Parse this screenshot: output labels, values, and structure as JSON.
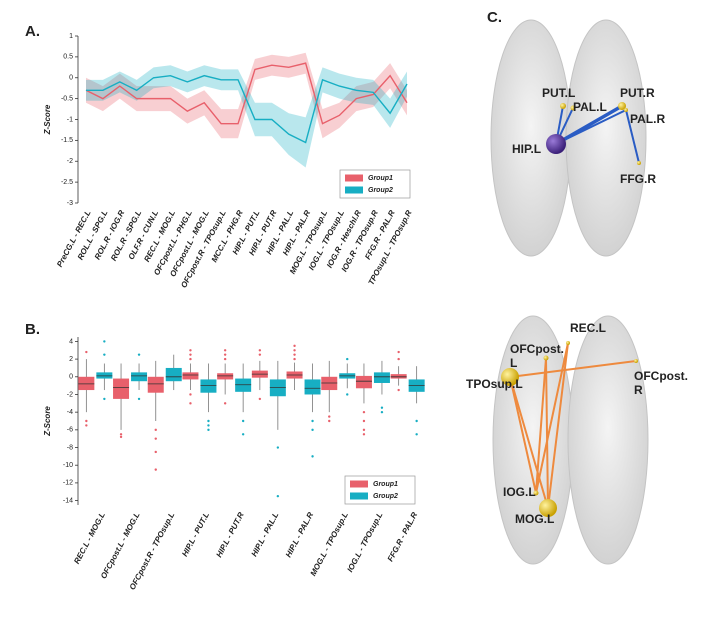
{
  "chart_data": [
    {
      "type": "band-line",
      "panel": "A.",
      "y_label": "Z-Score",
      "categories": [
        "PreCG.L - REC.L",
        "ROL.L - SPG.L",
        "ROL.R - IOG.R",
        "ROL.R - SPG.L",
        "OLF.R - CUN.L",
        "REC.L - MOG.L",
        "OFCpost.L - PHG.L",
        "OFCpost.L - MOG.L",
        "OFCpost.R - TPOsup.L",
        "MCC.L - PHG.R",
        "HIP.L - PUT.L",
        "HIP.L - PUT.R",
        "HIP.L - PAL.L",
        "HIP.L - PAL.R",
        "MOG.L - TPOsup.L",
        "IOG.L - TPOsup.L",
        "IOG.R - Heschl.R",
        "IOG.R - TPOsup.R",
        "FFG.R - PAL.R",
        "TPOsup.L - TPOsup.R"
      ],
      "series": [
        {
          "name": "Group1",
          "color": "#e8606b",
          "values": [
            -0.3,
            -0.5,
            -0.2,
            -0.5,
            -0.5,
            -0.5,
            -0.8,
            -0.6,
            -1.1,
            -1.1,
            0.2,
            0.3,
            0.25,
            0.35,
            -1.1,
            -0.9,
            -0.5,
            -0.4,
            0.05,
            -0.6
          ],
          "error": [
            0.3,
            0.3,
            0.3,
            0.3,
            0.3,
            0.3,
            0.3,
            0.3,
            0.35,
            0.35,
            0.25,
            0.25,
            0.25,
            0.25,
            0.35,
            0.3,
            0.3,
            0.3,
            0.3,
            0.3
          ]
        },
        {
          "name": "Group2",
          "color": "#17aec3",
          "values": [
            -0.3,
            -0.3,
            -0.1,
            -0.3,
            0.0,
            0.05,
            -0.1,
            0.05,
            -0.05,
            -0.05,
            -1.0,
            -1.0,
            -1.35,
            -1.55,
            -0.05,
            -0.2,
            -0.3,
            -0.35,
            -0.85,
            -0.15
          ],
          "error": [
            0.25,
            0.25,
            0.25,
            0.25,
            0.25,
            0.25,
            0.25,
            0.25,
            0.25,
            0.25,
            0.4,
            0.4,
            0.5,
            0.6,
            0.3,
            0.3,
            0.3,
            0.3,
            0.35,
            0.3
          ]
        }
      ],
      "ylim": [
        -3,
        1
      ],
      "yticks": [
        -3,
        -2.5,
        -2,
        -1.5,
        -1,
        -0.5,
        0,
        0.5,
        1
      ],
      "legend": "lower-right"
    },
    {
      "type": "box",
      "panel": "B.",
      "y_label": "Z-Score",
      "categories": [
        "REC.L - MOG.L",
        "OFCpost.L - MOG.L",
        "OFCpost.R - TPOsup.L",
        "HIP.L - PUT.L",
        "HIP.L - PUT.R",
        "HIP.L - PAL.L",
        "HIP.L - PAL.R",
        "MOG.L - TPOsup.L",
        "IOG.L - TPOsup.L",
        "FFG.R - PAL.R"
      ],
      "series": [
        {
          "name": "Group1",
          "color": "#e8606b",
          "min": [
            -4,
            -6,
            -5,
            -1.5,
            -2,
            -1.5,
            -1.5,
            -4,
            -3,
            -1
          ],
          "q1": [
            -1.5,
            -2.5,
            -1.8,
            -0.3,
            -0.3,
            -0.1,
            -0.2,
            -1.5,
            -1.3,
            -0.2
          ],
          "median": [
            -0.8,
            -1.2,
            -0.8,
            0.2,
            0.1,
            0.3,
            0.2,
            -0.7,
            -0.5,
            0
          ],
          "q3": [
            0,
            -0.2,
            0,
            0.5,
            0.4,
            0.7,
            0.6,
            0,
            0.1,
            0.3
          ],
          "max": [
            2,
            1.5,
            1.8,
            1.5,
            1.5,
            1.8,
            1.6,
            1.8,
            1.5,
            1.2
          ],
          "outliers": [
            [
              -5,
              -5.5,
              2.8
            ],
            [
              -6.5,
              -6.8
            ],
            [
              -6,
              -7,
              -8.5,
              -10.5
            ],
            [
              2,
              2.5,
              3,
              -2,
              -3
            ],
            [
              2,
              2.5,
              3,
              -3
            ],
            [
              2.5,
              3,
              -2.5
            ],
            [
              2,
              2.5,
              3,
              3.5
            ],
            [
              -4.5,
              -5
            ],
            [
              -4,
              -5,
              -6,
              -6.5
            ],
            [
              2,
              2.8,
              -1.5
            ]
          ]
        },
        {
          "name": "Group2",
          "color": "#17aec3",
          "min": [
            -1.5,
            -1.5,
            -1.5,
            -4,
            -4,
            -6,
            -4,
            -1.3,
            -2,
            -3
          ],
          "q1": [
            -0.2,
            -0.5,
            -0.5,
            -1.8,
            -1.7,
            -2.2,
            -2,
            -0.2,
            -0.7,
            -1.7
          ],
          "median": [
            0.1,
            0.1,
            0,
            -1,
            -0.9,
            -1.2,
            -1.3,
            0.1,
            0,
            -1
          ],
          "q3": [
            0.5,
            0.5,
            1,
            -0.3,
            -0.2,
            -0.3,
            -0.3,
            0.4,
            0.5,
            -0.3
          ],
          "max": [
            1.5,
            1.5,
            2.5,
            1.5,
            1.5,
            1.8,
            1.5,
            1.5,
            1.8,
            1.2
          ],
          "outliers": [
            [
              2.5,
              4,
              -2.5
            ],
            [
              2.5,
              -2.5
            ],
            [],
            [
              -5,
              -5.5,
              -6
            ],
            [
              -5,
              -6.5
            ],
            [
              -8,
              -13.5
            ],
            [
              -5,
              -6,
              -9
            ],
            [
              -2,
              2
            ],
            [
              -3.5,
              -4
            ],
            [
              -5,
              -6.5
            ]
          ]
        }
      ],
      "ylim": [
        -14.5,
        4.5
      ],
      "yticks": [
        4,
        2,
        0,
        -2,
        -4,
        -6,
        -8,
        -10,
        -12,
        -14
      ],
      "legend": "lower-right"
    }
  ],
  "brain_panel": {
    "panel": "C.",
    "top_nodes": [
      {
        "lines": [
          "HIP.L"
        ]
      },
      {
        "lines": [
          "PUT.L"
        ]
      },
      {
        "lines": [
          "PAL.L"
        ]
      },
      {
        "lines": [
          "PUT.R"
        ]
      },
      {
        "lines": [
          "PAL.R"
        ]
      },
      {
        "lines": [
          "FFG.R"
        ]
      }
    ],
    "bottom_nodes": [
      {
        "lines": [
          "REC.L"
        ]
      },
      {
        "lines": [
          "OFCpost.",
          "L"
        ]
      },
      {
        "lines": [
          "TPOsup.L"
        ]
      },
      {
        "lines": [
          "OFCpost.",
          "R"
        ]
      },
      {
        "lines": [
          "IOG.L"
        ]
      },
      {
        "lines": [
          "MOG.L"
        ]
      }
    ]
  }
}
